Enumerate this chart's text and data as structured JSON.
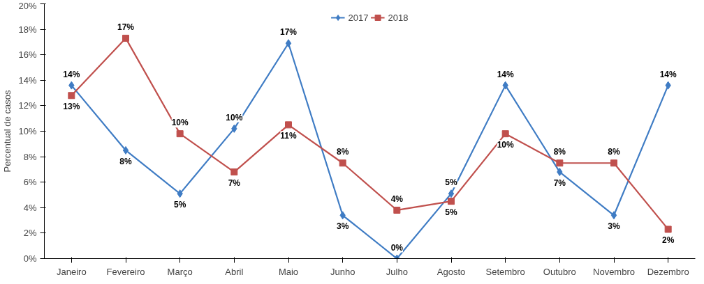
{
  "chart_data": {
    "type": "line",
    "ylabel": "Percentual de casos",
    "categories": [
      "Janeiro",
      "Fevereiro",
      "Março",
      "Abril",
      "Maio",
      "Junho",
      "Julho",
      "Agosto",
      "Setembro",
      "Outubro",
      "Novembro",
      "Dezembro"
    ],
    "series": [
      {
        "name": "2017",
        "color": "#3f7cc4",
        "marker": "diamond",
        "values": [
          13.6,
          8.5,
          5.1,
          10.2,
          16.9,
          3.4,
          0,
          5.1,
          13.6,
          6.8,
          3.4,
          13.6
        ],
        "value_labels": [
          "14%",
          "8%",
          "5%",
          "10%",
          "17%",
          "3%",
          "0%",
          "5%",
          "14%",
          "7%",
          "3%",
          "14%"
        ]
      },
      {
        "name": "2018",
        "color": "#c0504d",
        "marker": "square",
        "values": [
          12.8,
          17.3,
          9.8,
          6.8,
          10.5,
          7.5,
          3.8,
          4.5,
          9.8,
          7.5,
          7.5,
          2.3
        ],
        "value_labels": [
          "13%",
          "17%",
          "10%",
          "7%",
          "11%",
          "8%",
          "4%",
          "5%",
          "10%",
          "8%",
          "8%",
          "2%"
        ]
      }
    ],
    "ylim": [
      0,
      20
    ],
    "yticks": [
      {
        "value": 0,
        "label": "0%"
      },
      {
        "value": 2,
        "label": "2%"
      },
      {
        "value": 4,
        "label": "4%"
      },
      {
        "value": 6,
        "label": "6%"
      },
      {
        "value": 8,
        "label": "8%"
      },
      {
        "value": 10,
        "label": "10%"
      },
      {
        "value": 12,
        "label": "12%"
      },
      {
        "value": 14,
        "label": "14%"
      },
      {
        "value": 16,
        "label": "16%"
      },
      {
        "value": 18,
        "label": "18%"
      },
      {
        "value": 20,
        "label": "20%"
      }
    ],
    "grid": false,
    "legend": "top",
    "line_style": "solid"
  }
}
